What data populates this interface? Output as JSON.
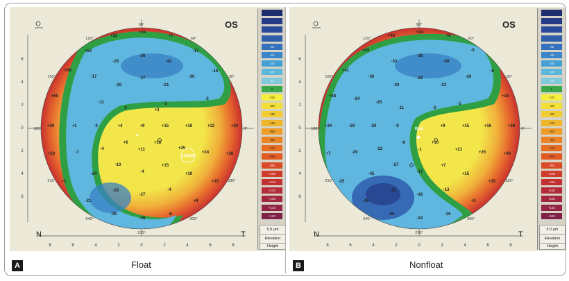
{
  "colors": {
    "green_band": "#2ea043"
  },
  "scale_bar": {
    "labels": [
      "",
      "",
      "",
      "",
      "-50",
      "-40",
      "-30",
      "-20",
      "-10",
      "0",
      "+10",
      "+20",
      "+30",
      "+40",
      "+50",
      "+60",
      "+70",
      "+80",
      "+90",
      "+100",
      "+110",
      "+120",
      "+130",
      "+140",
      "+150"
    ],
    "colors": [
      "#1d2d6e",
      "#243a85",
      "#2a4b9a",
      "#2f5dab",
      "#3470bb",
      "#3b86c8",
      "#43a0d4",
      "#5cb7dc",
      "#7fc9df",
      "#3aa84a",
      "#f4ef3a",
      "#f3df35",
      "#f1cb30",
      "#efb52b",
      "#ed9c27",
      "#ea8424",
      "#e66d22",
      "#e05a22",
      "#d84b26",
      "#cf3c2b",
      "#c33030",
      "#b42a38",
      "#a3263f",
      "#932446",
      "#7e2048"
    ],
    "step": "5.0 µm",
    "mode": "Elevation",
    "type": "Height"
  },
  "panels": [
    {
      "letter": "A",
      "caption": "Float",
      "eye": "OS",
      "left": "N",
      "right": "T",
      "axis_ticks": [
        "8",
        "6",
        "4",
        "2",
        "0",
        "2",
        "4",
        "6",
        "8"
      ],
      "y_ticks": [
        "6",
        "4",
        "2",
        "0",
        "2",
        "4",
        "6"
      ],
      "degrees": [
        "90°",
        "60°",
        "30°",
        "0°",
        "330°",
        "300°",
        "270°",
        "240°",
        "210°",
        "180°",
        "150°",
        "120°"
      ],
      "cursor_label": "+25µm",
      "values": [
        {
          "t": "+24",
          "x": 191,
          "y": 38
        },
        {
          "t": "+52",
          "x": 150,
          "y": 43
        },
        {
          "t": "+1",
          "x": 232,
          "y": 43
        },
        {
          "t": "+54",
          "x": 113,
          "y": 65
        },
        {
          "t": "-17",
          "x": 268,
          "y": 65
        },
        {
          "t": "+58",
          "x": 84,
          "y": 93
        },
        {
          "t": "-36",
          "x": 191,
          "y": 72
        },
        {
          "t": "-25",
          "x": 153,
          "y": 80
        },
        {
          "t": "-42",
          "x": 229,
          "y": 80
        },
        {
          "t": "-16",
          "x": 296,
          "y": 94
        },
        {
          "t": "-17",
          "x": 121,
          "y": 102
        },
        {
          "t": "-27",
          "x": 191,
          "y": 104
        },
        {
          "t": "-30",
          "x": 262,
          "y": 102
        },
        {
          "t": "-20",
          "x": 157,
          "y": 114
        },
        {
          "t": "-21",
          "x": 225,
          "y": 114
        },
        {
          "t": "+60",
          "x": 65,
          "y": 130
        },
        {
          "t": "-11",
          "x": 132,
          "y": 139
        },
        {
          "t": "-5",
          "x": 284,
          "y": 134
        },
        {
          "t": "-3",
          "x": 224,
          "y": 141
        },
        {
          "t": "+3",
          "x": 212,
          "y": 150
        },
        {
          "t": "0",
          "x": 167,
          "y": 147
        },
        {
          "t": "+59",
          "x": 59,
          "y": 173
        },
        {
          "t": "+1",
          "x": 93,
          "y": 173
        },
        {
          "t": "-3",
          "x": 124,
          "y": 173
        },
        {
          "t": "+4",
          "x": 159,
          "y": 173
        },
        {
          "t": "+9",
          "x": 191,
          "y": 173
        },
        {
          "t": "+15",
          "x": 224,
          "y": 173
        },
        {
          "t": "+16",
          "x": 258,
          "y": 173
        },
        {
          "t": "+12",
          "x": 290,
          "y": 173
        },
        {
          "t": "+20",
          "x": 324,
          "y": 173
        },
        {
          "t": "+6",
          "x": 167,
          "y": 197
        },
        {
          "t": "+18",
          "x": 213,
          "y": 197
        },
        {
          "t": "+25",
          "x": 248,
          "y": 205
        },
        {
          "t": "+33",
          "x": 60,
          "y": 213
        },
        {
          "t": "-7",
          "x": 97,
          "y": 211
        },
        {
          "t": "-4",
          "x": 133,
          "y": 206
        },
        {
          "t": "+11",
          "x": 190,
          "y": 207
        },
        {
          "t": "+24",
          "x": 282,
          "y": 211
        },
        {
          "t": "+38",
          "x": 317,
          "y": 213
        },
        {
          "t": "-10",
          "x": 156,
          "y": 229
        },
        {
          "t": "+15",
          "x": 224,
          "y": 230
        },
        {
          "t": "-24",
          "x": 121,
          "y": 242
        },
        {
          "t": "-4",
          "x": 191,
          "y": 239
        },
        {
          "t": "+19",
          "x": 258,
          "y": 242
        },
        {
          "t": "+1",
          "x": 78,
          "y": 253
        },
        {
          "t": "+35",
          "x": 296,
          "y": 253
        },
        {
          "t": "-35",
          "x": 153,
          "y": 266
        },
        {
          "t": "-27",
          "x": 191,
          "y": 272
        },
        {
          "t": "-4",
          "x": 230,
          "y": 265
        },
        {
          "t": "-21",
          "x": 113,
          "y": 281
        },
        {
          "t": "+8",
          "x": 268,
          "y": 281
        },
        {
          "t": "-35",
          "x": 150,
          "y": 300
        },
        {
          "t": "-26",
          "x": 191,
          "y": 306
        },
        {
          "t": "-6",
          "x": 231,
          "y": 300
        }
      ]
    },
    {
      "letter": "B",
      "caption": "Nonfloat",
      "eye": "OS",
      "left": "N",
      "right": "T",
      "axis_ticks": [
        "8",
        "6",
        "4",
        "2",
        "0",
        "2",
        "4",
        "6",
        "8"
      ],
      "y_ticks": [
        "6",
        "4",
        "2",
        "0",
        "2",
        "4",
        "6"
      ],
      "degrees": [
        "90°",
        "60°",
        "30°",
        "0°",
        "330°",
        "300°",
        "270°",
        "240°",
        "210°",
        "180°",
        "150°",
        "120°"
      ],
      "cursor_label": "0µm",
      "values": [
        {
          "t": "+24",
          "x": 188,
          "y": 38
        },
        {
          "t": "+46",
          "x": 147,
          "y": 43
        },
        {
          "t": "+6",
          "x": 229,
          "y": 43
        },
        {
          "t": "+43",
          "x": 110,
          "y": 64
        },
        {
          "t": "-9",
          "x": 264,
          "y": 64
        },
        {
          "t": "+41",
          "x": 81,
          "y": 93
        },
        {
          "t": "-38",
          "x": 188,
          "y": 72
        },
        {
          "t": "-33",
          "x": 151,
          "y": 80
        },
        {
          "t": "-40",
          "x": 226,
          "y": 80
        },
        {
          "t": "-6",
          "x": 292,
          "y": 94
        },
        {
          "t": "-36",
          "x": 118,
          "y": 102
        },
        {
          "t": "-32",
          "x": 188,
          "y": 104
        },
        {
          "t": "-26",
          "x": 258,
          "y": 102
        },
        {
          "t": "-30",
          "x": 154,
          "y": 114
        },
        {
          "t": "-23",
          "x": 222,
          "y": 114
        },
        {
          "t": "+38",
          "x": 62,
          "y": 130
        },
        {
          "t": "-24",
          "x": 97,
          "y": 134
        },
        {
          "t": "-25",
          "x": 129,
          "y": 139
        },
        {
          "t": "-11",
          "x": 161,
          "y": 147
        },
        {
          "t": "-2",
          "x": 209,
          "y": 147
        },
        {
          "t": "-1",
          "x": 245,
          "y": 141
        },
        {
          "t": "+18",
          "x": 311,
          "y": 130
        },
        {
          "t": "+34",
          "x": 56,
          "y": 173
        },
        {
          "t": "-20",
          "x": 90,
          "y": 173
        },
        {
          "t": "-20",
          "x": 121,
          "y": 173
        },
        {
          "t": "-9",
          "x": 155,
          "y": 173
        },
        {
          "t": "+9",
          "x": 221,
          "y": 173
        },
        {
          "t": "+15",
          "x": 254,
          "y": 173
        },
        {
          "t": "+16",
          "x": 286,
          "y": 173
        },
        {
          "t": "+28",
          "x": 320,
          "y": 173
        },
        {
          "t": "-8",
          "x": 164,
          "y": 197
        },
        {
          "t": "+10",
          "x": 210,
          "y": 197
        },
        {
          "t": "+7",
          "x": 56,
          "y": 213
        },
        {
          "t": "-29",
          "x": 94,
          "y": 211
        },
        {
          "t": "-22",
          "x": 130,
          "y": 206
        },
        {
          "t": "-1",
          "x": 188,
          "y": 207
        },
        {
          "t": "+21",
          "x": 244,
          "y": 207
        },
        {
          "t": "+25",
          "x": 278,
          "y": 211
        },
        {
          "t": "+44",
          "x": 314,
          "y": 213
        },
        {
          "t": "-27",
          "x": 153,
          "y": 229
        },
        {
          "t": "+7",
          "x": 222,
          "y": 230
        },
        {
          "t": "-17",
          "x": 188,
          "y": 239
        },
        {
          "t": "-45",
          "x": 118,
          "y": 242
        },
        {
          "t": "+15",
          "x": 254,
          "y": 242
        },
        {
          "t": "-25",
          "x": 75,
          "y": 253
        },
        {
          "t": "+35",
          "x": 292,
          "y": 253
        },
        {
          "t": "-53",
          "x": 150,
          "y": 266
        },
        {
          "t": "-42",
          "x": 188,
          "y": 272
        },
        {
          "t": "-13",
          "x": 226,
          "y": 265
        },
        {
          "t": "-45",
          "x": 110,
          "y": 281
        },
        {
          "t": "+3",
          "x": 265,
          "y": 281
        },
        {
          "t": "-55",
          "x": 147,
          "y": 300
        },
        {
          "t": "-42",
          "x": 188,
          "y": 306
        },
        {
          "t": "-16",
          "x": 228,
          "y": 300
        }
      ]
    }
  ]
}
